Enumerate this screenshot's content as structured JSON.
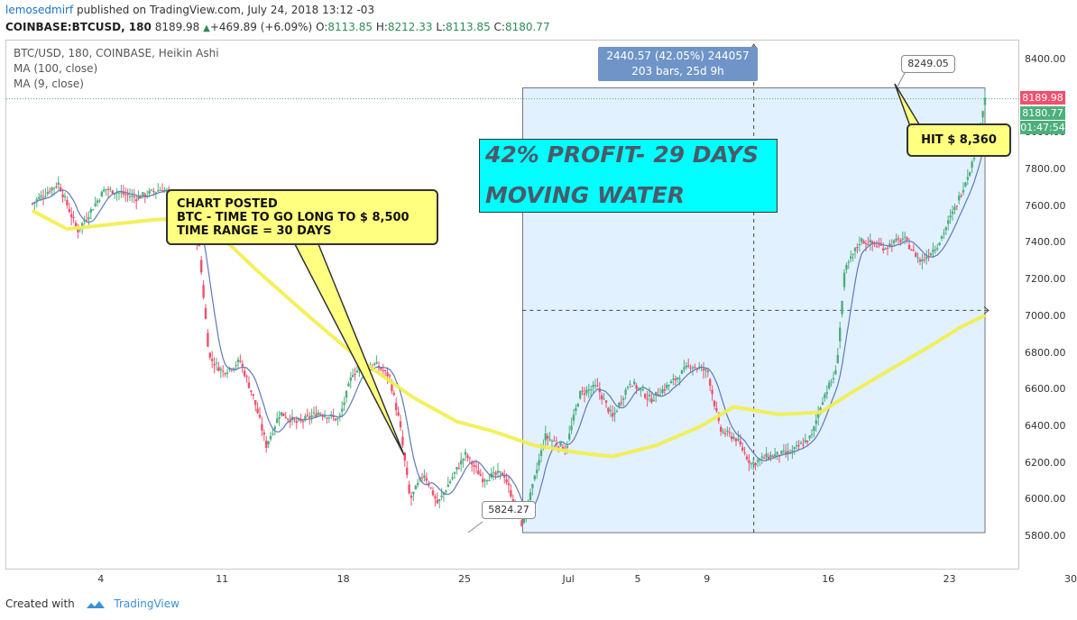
{
  "header": {
    "author": "lemosedmirf",
    "published": "published on TradingView.com, July 24, 2018 13:12 -03",
    "symbol": "COINBASE:BTCUSD, 180",
    "last": "8189.98",
    "change_arrow": "▲",
    "change": "+469.89 (+6.09%)",
    "o_label": "O:",
    "o": "8113.85",
    "h_label": "H:",
    "h": "8212.33",
    "l_label": "L:",
    "l": "8113.85",
    "c_label": "C:",
    "c": "8180.77"
  },
  "legend": {
    "title": "BTC/USD, 180, COINBASE, Heikin Ashi",
    "ma100": "MA (100, close)",
    "ma9": "MA (9, close)"
  },
  "price_tags": {
    "last_price": "8189.98",
    "close": "8180.77",
    "countdown": "01:47:54"
  },
  "annotations": {
    "posted_line1": "CHART POSTED",
    "posted_line2": "BTC - TIME TO GO LONG TO $ 8,500",
    "posted_line3": "TIME RANGE = 30 DAYS",
    "profit_line1": "42%  PROFIT- 29 DAYS",
    "profit_line2": "MOVING WATER",
    "hit": "HIT $ 8,360",
    "range_line1": "2440.57 (42.05%) 244057",
    "range_line2": "203 bars, 25d 9h",
    "low_label": "5824.27",
    "high_label": "8249.05"
  },
  "footer": {
    "created_with": "Created with",
    "brand": "TradingView"
  },
  "colors": {
    "up": "#4caf7d",
    "down": "#f0506e",
    "ma100": "#f2ee4a",
    "ma9": "#5d7ab8",
    "range_fill": "#ddeeff",
    "last_price_tag": "#f0506e",
    "close_tag": "#4caf7d"
  },
  "chart_data": {
    "type": "candlestick",
    "title": "BTC/USD, 180, COINBASE, Heikin Ashi",
    "y_ticks": [
      5800,
      6000,
      6200,
      6400,
      6600,
      6800,
      7000,
      7200,
      7400,
      7600,
      7800,
      8000,
      8200,
      8400
    ],
    "y_tick_labels": [
      "5800.00",
      "6000.00",
      "6200.00",
      "6400.00",
      "6600.00",
      "6800.00",
      "7000.00",
      "7200.00",
      "7400.00",
      "7600.00",
      "7800.00",
      "8000.00",
      "8200.00",
      "8400.00"
    ],
    "x_ticks": [
      {
        "day": 4,
        "label": "4"
      },
      {
        "day": 11,
        "label": "11"
      },
      {
        "day": 18,
        "label": "18"
      },
      {
        "day": 25,
        "label": "25"
      },
      {
        "day": 31,
        "label": "Jul"
      },
      {
        "day": 35,
        "label": "5"
      },
      {
        "day": 39,
        "label": "9"
      },
      {
        "day": 46,
        "label": "16"
      },
      {
        "day": 53,
        "label": "23"
      },
      {
        "day": 60,
        "label": "30"
      }
    ],
    "price_keypoints": [
      {
        "day": 0.0,
        "price": 7620
      },
      {
        "day": 1.5,
        "price": 7730
      },
      {
        "day": 2.6,
        "price": 7470
      },
      {
        "day": 4.2,
        "price": 7700
      },
      {
        "day": 6.0,
        "price": 7650
      },
      {
        "day": 7.5,
        "price": 7700
      },
      {
        "day": 8.8,
        "price": 7620
      },
      {
        "day": 9.6,
        "price": 7400
      },
      {
        "day": 10.2,
        "price": 6780
      },
      {
        "day": 11.0,
        "price": 6700
      },
      {
        "day": 12.0,
        "price": 6760
      },
      {
        "day": 12.8,
        "price": 6550
      },
      {
        "day": 13.5,
        "price": 6300
      },
      {
        "day": 14.3,
        "price": 6480
      },
      {
        "day": 15.3,
        "price": 6420
      },
      {
        "day": 16.5,
        "price": 6480
      },
      {
        "day": 17.7,
        "price": 6440
      },
      {
        "day": 18.5,
        "price": 6700
      },
      {
        "day": 19.8,
        "price": 6740
      },
      {
        "day": 20.6,
        "price": 6680
      },
      {
        "day": 21.2,
        "price": 6420
      },
      {
        "day": 21.8,
        "price": 6000
      },
      {
        "day": 22.6,
        "price": 6150
      },
      {
        "day": 23.4,
        "price": 5980
      },
      {
        "day": 24.2,
        "price": 6120
      },
      {
        "day": 25.0,
        "price": 6250
      },
      {
        "day": 26.0,
        "price": 6120
      },
      {
        "day": 27.2,
        "price": 6150
      },
      {
        "day": 28.3,
        "price": 5860
      },
      {
        "day": 28.9,
        "price": 6080
      },
      {
        "day": 29.6,
        "price": 6350
      },
      {
        "day": 30.8,
        "price": 6280
      },
      {
        "day": 31.6,
        "price": 6580
      },
      {
        "day": 32.6,
        "price": 6620
      },
      {
        "day": 33.5,
        "price": 6450
      },
      {
        "day": 34.5,
        "price": 6650
      },
      {
        "day": 35.7,
        "price": 6550
      },
      {
        "day": 37.0,
        "price": 6650
      },
      {
        "day": 38.0,
        "price": 6740
      },
      {
        "day": 39.0,
        "price": 6700
      },
      {
        "day": 39.7,
        "price": 6380
      },
      {
        "day": 40.6,
        "price": 6340
      },
      {
        "day": 41.5,
        "price": 6200
      },
      {
        "day": 42.5,
        "price": 6240
      },
      {
        "day": 43.8,
        "price": 6260
      },
      {
        "day": 45.0,
        "price": 6350
      },
      {
        "day": 45.6,
        "price": 6550
      },
      {
        "day": 46.4,
        "price": 6700
      },
      {
        "day": 46.9,
        "price": 7250
      },
      {
        "day": 47.8,
        "price": 7420
      },
      {
        "day": 49.2,
        "price": 7380
      },
      {
        "day": 50.3,
        "price": 7430
      },
      {
        "day": 51.3,
        "price": 7300
      },
      {
        "day": 52.3,
        "price": 7400
      },
      {
        "day": 53.3,
        "price": 7600
      },
      {
        "day": 54.3,
        "price": 7850
      },
      {
        "day": 55.0,
        "price": 8190
      }
    ],
    "ma100": [
      {
        "day": 0.0,
        "price": 7580
      },
      {
        "day": 2.0,
        "price": 7480
      },
      {
        "day": 4.0,
        "price": 7500
      },
      {
        "day": 7.0,
        "price": 7530
      },
      {
        "day": 9.0,
        "price": 7540
      },
      {
        "day": 11.0,
        "price": 7430
      },
      {
        "day": 13.0,
        "price": 7250
      },
      {
        "day": 16.0,
        "price": 7000
      },
      {
        "day": 19.0,
        "price": 6760
      },
      {
        "day": 22.0,
        "price": 6560
      },
      {
        "day": 24.5,
        "price": 6430
      },
      {
        "day": 26.5,
        "price": 6380
      },
      {
        "day": 29.0,
        "price": 6300
      },
      {
        "day": 31.5,
        "price": 6260
      },
      {
        "day": 33.5,
        "price": 6240
      },
      {
        "day": 36.0,
        "price": 6300
      },
      {
        "day": 38.5,
        "price": 6400
      },
      {
        "day": 40.5,
        "price": 6510
      },
      {
        "day": 43.0,
        "price": 6470
      },
      {
        "day": 45.5,
        "price": 6480
      },
      {
        "day": 47.5,
        "price": 6600
      },
      {
        "day": 50.0,
        "price": 6740
      },
      {
        "day": 52.0,
        "price": 6850
      },
      {
        "day": 53.5,
        "price": 6940
      },
      {
        "day": 55.0,
        "price": 7010
      }
    ],
    "annotated_low": 5824.27,
    "annotated_high": 8249.05,
    "last_price": 8189.98
  }
}
